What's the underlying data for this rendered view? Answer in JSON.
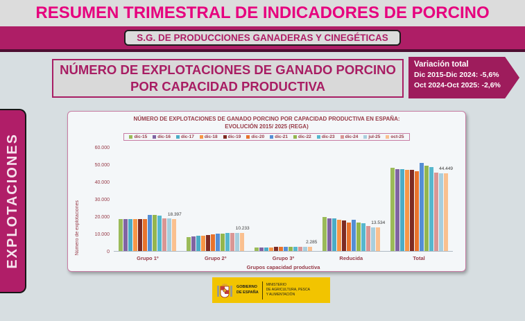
{
  "header": {
    "title": "RESUMEN TRIMESTRAL DE INDICADORES DE PORCINO",
    "subtitle": "S.G. DE PRODUCCIONES GANADERAS Y CINEGÉTICAS"
  },
  "sidebar": {
    "label": "EXPLOTACIONES"
  },
  "section": {
    "heading_line1": "NÚMERO DE EXPLOTACIONES DE GANADO PORCINO",
    "heading_line2": "POR CAPACIDAD PRODUCTIVA",
    "variation": {
      "title": "Variación total",
      "line1": "Dic 2015-Dic 2024: -5,6%",
      "line2": "Oct 2024-Oct 2025: -2,6%"
    }
  },
  "footer": {
    "gov_line1": "GOBIERNO",
    "gov_line2": "DE ESPAÑA",
    "ministry_line1": "MINISTERIO",
    "ministry_line2": "DE AGRICULTURA, PESCA",
    "ministry_line3": "Y ALIMENTACIÓN"
  },
  "chart_data": {
    "type": "bar",
    "title_line1": "NÚMERO DE EXPLOTACIONES DE GANADO PORCINO POR CAPACIDAD PRODUCTIVA EN ESPAÑA:",
    "title_line2": "EVOLUCIÓN 2015/ 2025 (REGA)",
    "xlabel": "Grupos capacidad productiva",
    "ylabel": "Número de explotaciones",
    "ylim": [
      0,
      60000
    ],
    "yticks": [
      0,
      10000,
      20000,
      30000,
      40000,
      50000,
      60000
    ],
    "ytick_labels": [
      "0",
      "10.000",
      "20.000",
      "30.000",
      "40.000",
      "50.000",
      "60.000"
    ],
    "grid": false,
    "legend_position": "top",
    "categories": [
      "Grupo 1º",
      "Grupo 2º",
      "Grupo 3º",
      "Reducida",
      "Total"
    ],
    "series": [
      {
        "name": "dic-15",
        "color": "#9BBB59",
        "values": [
          18200,
          8000,
          1800,
          19500,
          47800
        ]
      },
      {
        "name": "dic-16",
        "color": "#8064A2",
        "values": [
          18200,
          8300,
          1900,
          18700,
          46900
        ]
      },
      {
        "name": "dic-17",
        "color": "#4BACC6",
        "values": [
          18250,
          8450,
          1950,
          18450,
          46900
        ]
      },
      {
        "name": "dic-18",
        "color": "#F79646",
        "values": [
          18300,
          8600,
          2000,
          18000,
          46700
        ]
      },
      {
        "name": "dic-19",
        "color": "#7E2B22",
        "values": [
          18250,
          8850,
          2200,
          17350,
          46500
        ]
      },
      {
        "name": "dic-20",
        "color": "#E8732C",
        "values": [
          18300,
          9300,
          2100,
          16400,
          46000
        ]
      },
      {
        "name": "dic-21",
        "color": "#558ED5",
        "values": [
          20800,
          9800,
          2050,
          17700,
          50500
        ]
      },
      {
        "name": "dic-22",
        "color": "#94B64E",
        "values": [
          20450,
          10000,
          2200,
          16200,
          48900
        ]
      },
      {
        "name": "dic-23",
        "color": "#56B7CD",
        "values": [
          20100,
          10050,
          2300,
          15700,
          48100
        ]
      },
      {
        "name": "dic-24",
        "color": "#D99694",
        "values": [
          18700,
          10150,
          2250,
          14050,
          45200
        ]
      },
      {
        "name": "jul-25",
        "color": "#A8CEDD",
        "values": [
          18450,
          10200,
          2250,
          13600,
          44500
        ]
      },
      {
        "name": "oct-25",
        "color": "#FAC08F",
        "values": [
          18397,
          10233,
          2285,
          13534,
          44449
        ]
      }
    ],
    "data_labels": [
      "18.397",
      "10.233",
      "2.285",
      "13.534",
      "44.449"
    ],
    "data_label_series": "oct-25"
  }
}
